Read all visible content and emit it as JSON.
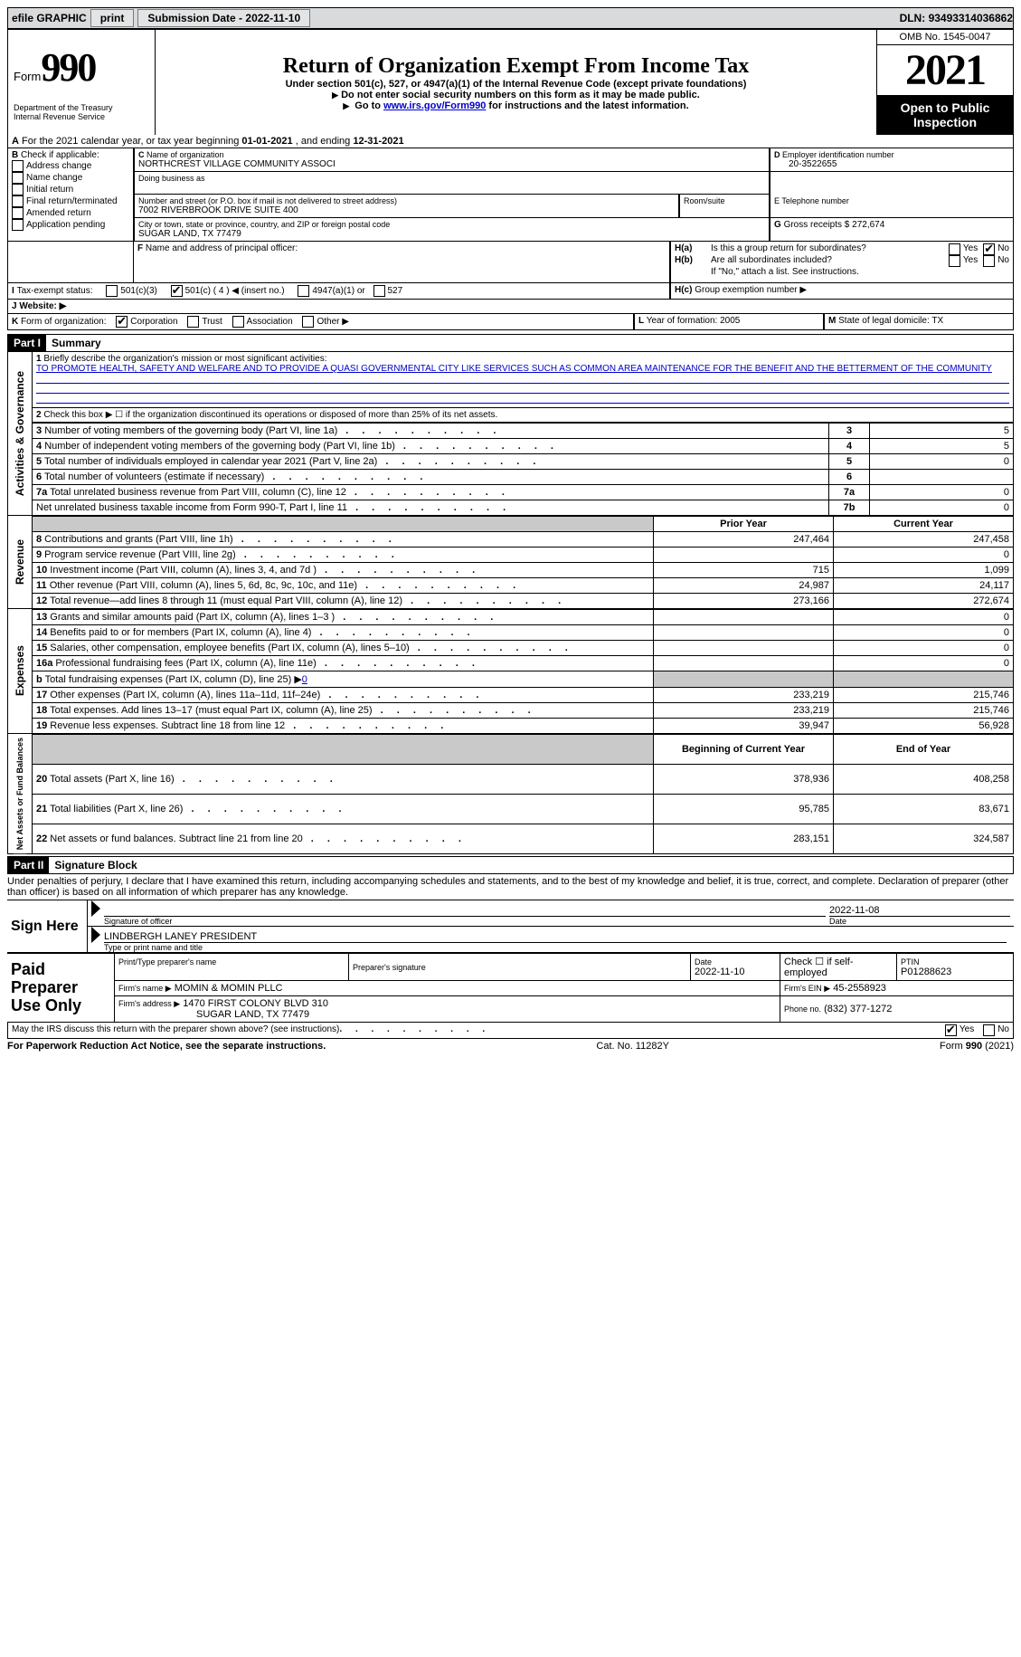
{
  "topbar": {
    "efile": "efile GRAPHIC",
    "print": "print",
    "subdate_label": "Submission Date - ",
    "subdate": "2022-11-10",
    "dln_label": "DLN: ",
    "dln": "93493314036862"
  },
  "header": {
    "form_prefix": "Form",
    "form_no": "990",
    "dept": "Department of the Treasury",
    "irs": "Internal Revenue Service",
    "title": "Return of Organization Exempt From Income Tax",
    "sub1": "Under section 501(c), 527, or 4947(a)(1) of the Internal Revenue Code (except private foundations)",
    "sub2": "Do not enter social security numbers on this form as it may be made public.",
    "sub3_pre": "Go to ",
    "sub3_link": "www.irs.gov/Form990",
    "sub3_post": " for instructions and the latest information.",
    "omb": "OMB No. 1545-0047",
    "year": "2021",
    "open": "Open to Public Inspection"
  },
  "A": {
    "line": "For the 2021 calendar year, or tax year beginning ",
    "begin": "01-01-2021",
    "mid": "   , and ending ",
    "end": "12-31-2021"
  },
  "B": {
    "title": "Check if applicable:",
    "opts": [
      "Address change",
      "Name change",
      "Initial return",
      "Final return/terminated",
      "Amended return",
      "Application pending"
    ]
  },
  "C": {
    "name_lbl": "Name of organization",
    "name": "NORTHCREST VILLAGE COMMUNITY ASSOCI",
    "dba_lbl": "Doing business as",
    "street_lbl": "Number and street (or P.O. box if mail is not delivered to street address)",
    "room_lbl": "Room/suite",
    "street": "7002 RIVERBROOK DRIVE SUITE 400",
    "city_lbl": "City or town, state or province, country, and ZIP or foreign postal code",
    "city": "SUGAR LAND, TX  77479"
  },
  "D": {
    "lbl": "Employer identification number",
    "val": "20-3522655"
  },
  "E": {
    "lbl": "E Telephone number"
  },
  "G": {
    "lbl": "Gross receipts $",
    "val": "272,674"
  },
  "F": {
    "lbl": "Name and address of principal officer:"
  },
  "H": {
    "a": "Is this a group return for subordinates?",
    "b": "Are all subordinates included?",
    "note": "If \"No,\" attach a list. See instructions.",
    "c": "Group exemption number ▶",
    "yes": "Yes",
    "no": "No"
  },
  "I": {
    "lbl": "Tax-exempt status:",
    "opts": [
      "501(c)(3)",
      "501(c) ( 4 ) ◀ (insert no.)",
      "4947(a)(1) or",
      "527"
    ]
  },
  "J": {
    "lbl": "Website: ▶"
  },
  "K": {
    "lbl": "Form of organization:",
    "opts": [
      "Corporation",
      "Trust",
      "Association",
      "Other ▶"
    ]
  },
  "L": {
    "lbl": "Year of formation:",
    "val": "2005"
  },
  "M": {
    "lbl": "State of legal domicile:",
    "val": "TX"
  },
  "part1": {
    "hdr": "Part I",
    "title": "Summary",
    "q1": "Briefly describe the organization's mission or most significant activities:",
    "mission": "TO PROMOTE HEALTH, SAFETY AND WELFARE AND TO PROVIDE A QUASI GOVERNMENTAL CITY LIKE SERVICES SUCH AS COMMON AREA MAINTENANCE FOR THE BENEFIT AND THE BETTERMENT OF THE COMMUNITY",
    "q2": "Check this box ▶ ☐ if the organization discontinued its operations or disposed of more than 25% of its net assets.",
    "rows_gov": [
      {
        "n": "3",
        "t": "Number of voting members of the governing body (Part VI, line 1a)",
        "box": "3",
        "v": "5"
      },
      {
        "n": "4",
        "t": "Number of independent voting members of the governing body (Part VI, line 1b)",
        "box": "4",
        "v": "5"
      },
      {
        "n": "5",
        "t": "Total number of individuals employed in calendar year 2021 (Part V, line 2a)",
        "box": "5",
        "v": "0"
      },
      {
        "n": "6",
        "t": "Total number of volunteers (estimate if necessary)",
        "box": "6",
        "v": ""
      },
      {
        "n": "7a",
        "t": "Total unrelated business revenue from Part VIII, column (C), line 12",
        "box": "7a",
        "v": "0"
      },
      {
        "n": "",
        "t": "Net unrelated business taxable income from Form 990-T, Part I, line 11",
        "box": "7b",
        "v": "0"
      }
    ],
    "col_prior": "Prior Year",
    "col_curr": "Current Year",
    "rev": [
      {
        "n": "8",
        "t": "Contributions and grants (Part VIII, line 1h)",
        "p": "247,464",
        "c": "247,458"
      },
      {
        "n": "9",
        "t": "Program service revenue (Part VIII, line 2g)",
        "p": "",
        "c": "0"
      },
      {
        "n": "10",
        "t": "Investment income (Part VIII, column (A), lines 3, 4, and 7d )",
        "p": "715",
        "c": "1,099"
      },
      {
        "n": "11",
        "t": "Other revenue (Part VIII, column (A), lines 5, 6d, 8c, 9c, 10c, and 11e)",
        "p": "24,987",
        "c": "24,117"
      },
      {
        "n": "12",
        "t": "Total revenue—add lines 8 through 11 (must equal Part VIII, column (A), line 12)",
        "p": "273,166",
        "c": "272,674"
      }
    ],
    "exp": [
      {
        "n": "13",
        "t": "Grants and similar amounts paid (Part IX, column (A), lines 1–3 )",
        "p": "",
        "c": "0"
      },
      {
        "n": "14",
        "t": "Benefits paid to or for members (Part IX, column (A), line 4)",
        "p": "",
        "c": "0"
      },
      {
        "n": "15",
        "t": "Salaries, other compensation, employee benefits (Part IX, column (A), lines 5–10)",
        "p": "",
        "c": "0"
      },
      {
        "n": "16a",
        "t": "Professional fundraising fees (Part IX, column (A), line 11e)",
        "p": "",
        "c": "0"
      },
      {
        "n": "b",
        "t": "Total fundraising expenses (Part IX, column (D), line 25) ▶",
        "p": "GRAY",
        "c": "GRAY",
        "fund": "0"
      },
      {
        "n": "17",
        "t": "Other expenses (Part IX, column (A), lines 11a–11d, 11f–24e)",
        "p": "233,219",
        "c": "215,746"
      },
      {
        "n": "18",
        "t": "Total expenses. Add lines 13–17 (must equal Part IX, column (A), line 25)",
        "p": "233,219",
        "c": "215,746"
      },
      {
        "n": "19",
        "t": "Revenue less expenses. Subtract line 18 from line 12",
        "p": "39,947",
        "c": "56,928"
      }
    ],
    "col_bcy": "Beginning of Current Year",
    "col_eoy": "End of Year",
    "net": [
      {
        "n": "20",
        "t": "Total assets (Part X, line 16)",
        "p": "378,936",
        "c": "408,258"
      },
      {
        "n": "21",
        "t": "Total liabilities (Part X, line 26)",
        "p": "95,785",
        "c": "83,671"
      },
      {
        "n": "22",
        "t": "Net assets or fund balances. Subtract line 21 from line 20",
        "p": "283,151",
        "c": "324,587"
      }
    ],
    "side_gov": "Activities & Governance",
    "side_rev": "Revenue",
    "side_exp": "Expenses",
    "side_net": "Net Assets or Fund Balances"
  },
  "part2": {
    "hdr": "Part II",
    "title": "Signature Block",
    "decl": "Under penalties of perjury, I declare that I have examined this return, including accompanying schedules and statements, and to the best of my knowledge and belief, it is true, correct, and complete. Declaration of preparer (other than officer) is based on all information of which preparer has any knowledge.",
    "sign_here": "Sign Here",
    "sig_officer": "Signature of officer",
    "sig_date": "2022-11-08",
    "date_lbl": "Date",
    "officer_name": "LINDBERGH LANEY PRESIDENT",
    "typename_lbl": "Type or print name and title",
    "paid": "Paid Preparer Use Only",
    "prep_name_lbl": "Print/Type preparer's name",
    "prep_sig_lbl": "Preparer's signature",
    "prep_date_lbl": "Date",
    "prep_date": "2022-11-10",
    "check_self": "Check ☐ if self-employed",
    "ptin_lbl": "PTIN",
    "ptin": "P01288623",
    "firm_name_lbl": "Firm's name    ▶",
    "firm_name": "MOMIN & MOMIN PLLC",
    "firm_ein_lbl": "Firm's EIN ▶",
    "firm_ein": "45-2558923",
    "firm_addr_lbl": "Firm's address ▶",
    "firm_addr1": "1470 FIRST COLONY BLVD 310",
    "firm_addr2": "SUGAR LAND, TX  77479",
    "phone_lbl": "Phone no.",
    "phone": "(832) 377-1272",
    "discuss": "May the IRS discuss this return with the preparer shown above? (see instructions)"
  },
  "footer": {
    "left": "For Paperwork Reduction Act Notice, see the separate instructions.",
    "mid": "Cat. No. 11282Y",
    "right": "Form 990 (2021)"
  }
}
